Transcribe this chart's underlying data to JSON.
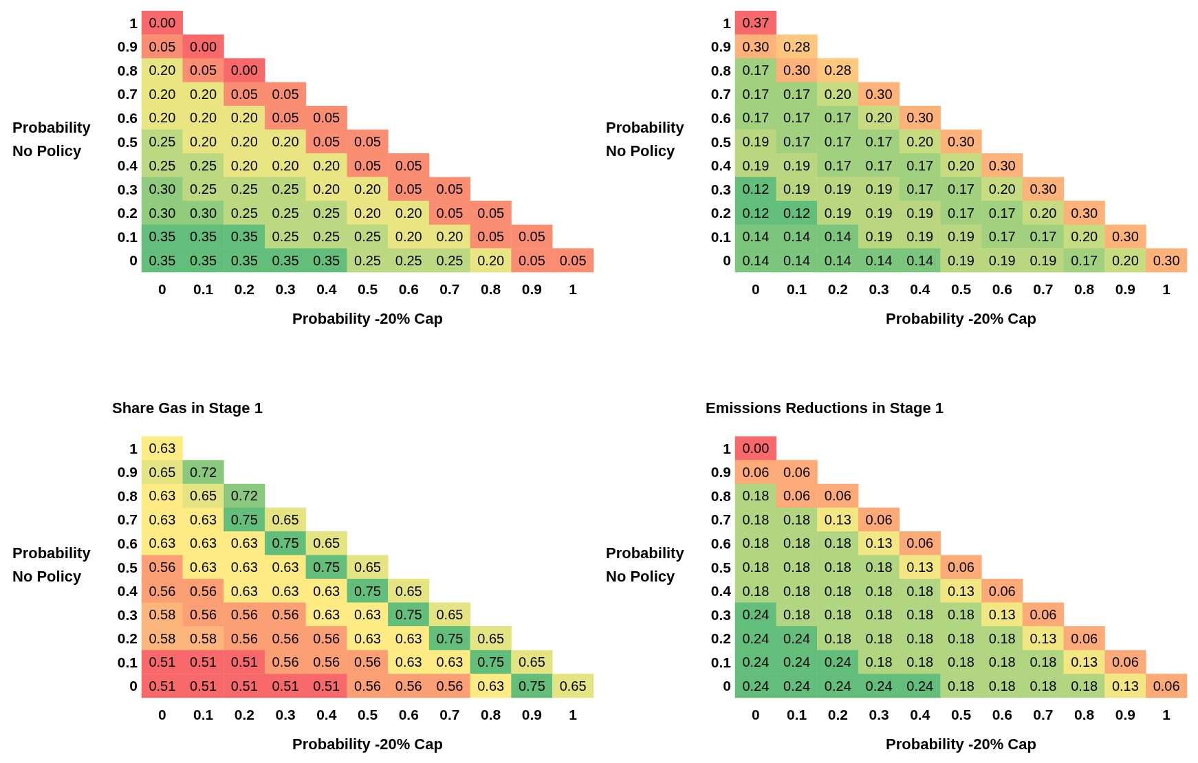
{
  "chart_data": [
    {
      "type": "heatmap",
      "xlabel": "Probability -20% Cap",
      "ylabel": "Probability No Policy",
      "colors": [
        "#f8696b",
        "#ffeb84",
        "#63be7b"
      ],
      "categories": [
        "0",
        "0.1",
        "0.2",
        "0.3",
        "0.4",
        "0.5",
        "0.6",
        "0.7",
        "0.8",
        "0.9",
        "1"
      ],
      "y_categories": [
        "1",
        "0.9",
        "0.8",
        "0.7",
        "0.6",
        "0.5",
        "0.4",
        "0.3",
        "0.2",
        "0.1",
        "0"
      ],
      "cells": [
        [
          0.0,
          null,
          null,
          null,
          null,
          null,
          null,
          null,
          null,
          null,
          null
        ],
        [
          0.05,
          0.0,
          null,
          null,
          null,
          null,
          null,
          null,
          null,
          null,
          null
        ],
        [
          0.2,
          0.05,
          0.0,
          null,
          null,
          null,
          null,
          null,
          null,
          null,
          null
        ],
        [
          0.2,
          0.2,
          0.05,
          0.05,
          null,
          null,
          null,
          null,
          null,
          null,
          null
        ],
        [
          0.2,
          0.2,
          0.2,
          0.05,
          0.05,
          null,
          null,
          null,
          null,
          null,
          null
        ],
        [
          0.25,
          0.2,
          0.2,
          0.2,
          0.05,
          0.05,
          null,
          null,
          null,
          null,
          null
        ],
        [
          0.25,
          0.25,
          0.2,
          0.2,
          0.2,
          0.05,
          0.05,
          null,
          null,
          null,
          null
        ],
        [
          0.3,
          0.25,
          0.25,
          0.25,
          0.2,
          0.2,
          0.05,
          0.05,
          null,
          null,
          null
        ],
        [
          0.3,
          0.3,
          0.25,
          0.25,
          0.25,
          0.2,
          0.2,
          0.05,
          0.05,
          null,
          null
        ],
        [
          0.35,
          0.35,
          0.35,
          0.25,
          0.25,
          0.25,
          0.2,
          0.2,
          0.05,
          0.05,
          null
        ],
        [
          0.35,
          0.35,
          0.35,
          0.35,
          0.35,
          0.25,
          0.25,
          0.25,
          0.2,
          0.05,
          0.05
        ]
      ],
      "cell_labels": [
        [
          "0.00",
          null,
          null,
          null,
          null,
          null,
          null,
          null,
          null,
          null,
          null
        ],
        [
          "0.05",
          "0.00",
          null,
          null,
          null,
          null,
          null,
          null,
          null,
          null,
          null
        ],
        [
          "0.20",
          "0.05",
          "0.00",
          null,
          null,
          null,
          null,
          null,
          null,
          null,
          null
        ],
        [
          "0.20",
          "0.20",
          "0.05",
          "0.05",
          null,
          null,
          null,
          null,
          null,
          null,
          null
        ],
        [
          "0.20",
          "0.20",
          "0.20",
          "0.05",
          "0.05",
          null,
          null,
          null,
          null,
          null,
          null
        ],
        [
          "0.25",
          "0.20",
          "0.20",
          "0.20",
          "0.05",
          "0.05",
          null,
          null,
          null,
          null,
          null
        ],
        [
          "0.25",
          "0.25",
          "0.20",
          "0.20",
          "0.20",
          "0.05",
          "0.05",
          null,
          null,
          null,
          null
        ],
        [
          "0.30",
          "0.25",
          "0.25",
          "0.25",
          "0.20",
          "0.20",
          "0.05",
          "0.05",
          null,
          null,
          null
        ],
        [
          "0.30",
          "0.30",
          "0.25",
          "0.25",
          "0.25",
          "0.20",
          "0.20",
          "0.05",
          "0.05",
          null,
          null
        ],
        [
          "0.35",
          "0.35",
          "0.35",
          "0.25",
          "0.25",
          "0.25",
          "0.20",
          "0.20",
          "0.05",
          "0.05",
          null
        ],
        [
          "0.35",
          "0.35",
          "0.35",
          "0.35",
          "0.35",
          "0.25",
          "0.25",
          "0.25",
          "0.20",
          "0.05",
          "0.05"
        ]
      ]
    },
    {
      "type": "heatmap",
      "xlabel": "Probability -20% Cap",
      "ylabel": "Probability No Policy",
      "colors": [
        "#63be7b",
        "#ffeb84",
        "#f8696b"
      ],
      "categories": [
        "0",
        "0.1",
        "0.2",
        "0.3",
        "0.4",
        "0.5",
        "0.6",
        "0.7",
        "0.8",
        "0.9",
        "1"
      ],
      "y_categories": [
        "1",
        "0.9",
        "0.8",
        "0.7",
        "0.6",
        "0.5",
        "0.4",
        "0.3",
        "0.2",
        "0.1",
        "0"
      ],
      "cells": [
        [
          0.37,
          null,
          null,
          null,
          null,
          null,
          null,
          null,
          null,
          null,
          null
        ],
        [
          0.3,
          0.28,
          null,
          null,
          null,
          null,
          null,
          null,
          null,
          null,
          null
        ],
        [
          0.17,
          0.3,
          0.28,
          null,
          null,
          null,
          null,
          null,
          null,
          null,
          null
        ],
        [
          0.17,
          0.17,
          0.2,
          0.3,
          null,
          null,
          null,
          null,
          null,
          null,
          null
        ],
        [
          0.17,
          0.17,
          0.17,
          0.2,
          0.3,
          null,
          null,
          null,
          null,
          null,
          null
        ],
        [
          0.19,
          0.17,
          0.17,
          0.17,
          0.2,
          0.3,
          null,
          null,
          null,
          null,
          null
        ],
        [
          0.19,
          0.19,
          0.17,
          0.17,
          0.17,
          0.2,
          0.3,
          null,
          null,
          null,
          null
        ],
        [
          0.12,
          0.19,
          0.19,
          0.19,
          0.17,
          0.17,
          0.2,
          0.3,
          null,
          null,
          null
        ],
        [
          0.12,
          0.12,
          0.19,
          0.19,
          0.19,
          0.17,
          0.17,
          0.2,
          0.3,
          null,
          null
        ],
        [
          0.14,
          0.14,
          0.14,
          0.19,
          0.19,
          0.19,
          0.17,
          0.17,
          0.2,
          0.3,
          null
        ],
        [
          0.14,
          0.14,
          0.14,
          0.14,
          0.14,
          0.19,
          0.19,
          0.19,
          0.17,
          0.2,
          0.3
        ]
      ],
      "cell_labels": [
        [
          "0.37",
          null,
          null,
          null,
          null,
          null,
          null,
          null,
          null,
          null,
          null
        ],
        [
          "0.30",
          "0.28",
          null,
          null,
          null,
          null,
          null,
          null,
          null,
          null,
          null
        ],
        [
          "0.17",
          "0.30",
          "0.28",
          null,
          null,
          null,
          null,
          null,
          null,
          null,
          null
        ],
        [
          "0.17",
          "0.17",
          "0.20",
          "0.30",
          null,
          null,
          null,
          null,
          null,
          null,
          null
        ],
        [
          "0.17",
          "0.17",
          "0.17",
          "0.20",
          "0.30",
          null,
          null,
          null,
          null,
          null,
          null
        ],
        [
          "0.19",
          "0.17",
          "0.17",
          "0.17",
          "0.20",
          "0.30",
          null,
          null,
          null,
          null,
          null
        ],
        [
          "0.19",
          "0.19",
          "0.17",
          "0.17",
          "0.17",
          "0.20",
          "0.30",
          null,
          null,
          null,
          null
        ],
        [
          "0.12",
          "0.19",
          "0.19",
          "0.19",
          "0.17",
          "0.17",
          "0.20",
          "0.30",
          null,
          null,
          null
        ],
        [
          "0.12",
          "0.12",
          "0.19",
          "0.19",
          "0.19",
          "0.17",
          "0.17",
          "0.20",
          "0.30",
          null,
          null
        ],
        [
          "0.14",
          "0.14",
          "0.14",
          "0.19",
          "0.19",
          "0.19",
          "0.17",
          "0.17",
          "0.20",
          "0.30",
          null
        ],
        [
          "0.14",
          "0.14",
          "0.14",
          "0.14",
          "0.14",
          "0.19",
          "0.19",
          "0.19",
          "0.17",
          "0.20",
          "0.30"
        ]
      ]
    },
    {
      "type": "heatmap",
      "title": "Share Gas in Stage 1",
      "xlabel": "Probability -20% Cap",
      "ylabel": "Probability No Policy",
      "data_labels": true,
      "colors": [
        "#f8696b",
        "#ffeb84",
        "#63be7b"
      ],
      "categories": [
        "0",
        "0.1",
        "0.2",
        "0.3",
        "0.4",
        "0.5",
        "0.6",
        "0.7",
        "0.8",
        "0.9",
        "1"
      ],
      "y_categories": [
        "1",
        "0.9",
        "0.8",
        "0.7",
        "0.6",
        "0.5",
        "0.4",
        "0.3",
        "0.2",
        "0.1",
        "0"
      ],
      "cells": [
        [
          0.63,
          null,
          null,
          null,
          null,
          null,
          null,
          null,
          null,
          null,
          null
        ],
        [
          0.65,
          0.72,
          null,
          null,
          null,
          null,
          null,
          null,
          null,
          null,
          null
        ],
        [
          0.63,
          0.65,
          0.72,
          null,
          null,
          null,
          null,
          null,
          null,
          null,
          null
        ],
        [
          0.63,
          0.63,
          0.75,
          0.65,
          null,
          null,
          null,
          null,
          null,
          null,
          null
        ],
        [
          0.63,
          0.63,
          0.63,
          0.75,
          0.65,
          null,
          null,
          null,
          null,
          null,
          null
        ],
        [
          0.56,
          0.63,
          0.63,
          0.63,
          0.75,
          0.65,
          null,
          null,
          null,
          null,
          null
        ],
        [
          0.56,
          0.56,
          0.63,
          0.63,
          0.63,
          0.75,
          0.65,
          null,
          null,
          null,
          null
        ],
        [
          0.58,
          0.56,
          0.56,
          0.56,
          0.63,
          0.63,
          0.75,
          0.65,
          null,
          null,
          null
        ],
        [
          0.58,
          0.58,
          0.56,
          0.56,
          0.56,
          0.63,
          0.63,
          0.75,
          0.65,
          null,
          null
        ],
        [
          0.51,
          0.51,
          0.51,
          0.56,
          0.56,
          0.56,
          0.63,
          0.63,
          0.75,
          0.65,
          null
        ],
        [
          0.51,
          0.51,
          0.51,
          0.51,
          0.51,
          0.56,
          0.56,
          0.56,
          0.63,
          0.75,
          0.65
        ]
      ]
    },
    {
      "type": "heatmap",
      "title": "Emissions Reductions in Stage 1",
      "xlabel": "Probability -20% Cap",
      "ylabel": "Probability No Policy",
      "colors": [
        "#f8696b",
        "#ffeb84",
        "#63be7b"
      ],
      "categories": [
        "0",
        "0.1",
        "0.2",
        "0.3",
        "0.4",
        "0.5",
        "0.6",
        "0.7",
        "0.8",
        "0.9",
        "1"
      ],
      "y_categories": [
        "1",
        "0.9",
        "0.8",
        "0.7",
        "0.6",
        "0.5",
        "0.4",
        "0.3",
        "0.2",
        "0.1",
        "0"
      ],
      "cells": [
        [
          0.0,
          null,
          null,
          null,
          null,
          null,
          null,
          null,
          null,
          null,
          null
        ],
        [
          0.06,
          0.06,
          null,
          null,
          null,
          null,
          null,
          null,
          null,
          null,
          null
        ],
        [
          0.18,
          0.06,
          0.06,
          null,
          null,
          null,
          null,
          null,
          null,
          null,
          null
        ],
        [
          0.18,
          0.18,
          0.13,
          0.06,
          null,
          null,
          null,
          null,
          null,
          null,
          null
        ],
        [
          0.18,
          0.18,
          0.18,
          0.13,
          0.06,
          null,
          null,
          null,
          null,
          null,
          null
        ],
        [
          0.18,
          0.18,
          0.18,
          0.18,
          0.13,
          0.06,
          null,
          null,
          null,
          null,
          null
        ],
        [
          0.18,
          0.18,
          0.18,
          0.18,
          0.18,
          0.13,
          0.06,
          null,
          null,
          null,
          null
        ],
        [
          0.24,
          0.18,
          0.18,
          0.18,
          0.18,
          0.18,
          0.13,
          0.06,
          null,
          null,
          null
        ],
        [
          0.24,
          0.24,
          0.18,
          0.18,
          0.18,
          0.18,
          0.18,
          0.13,
          0.06,
          null,
          null
        ],
        [
          0.24,
          0.24,
          0.24,
          0.18,
          0.18,
          0.18,
          0.18,
          0.18,
          0.13,
          0.06,
          null
        ],
        [
          0.24,
          0.24,
          0.24,
          0.24,
          0.24,
          0.18,
          0.18,
          0.18,
          0.18,
          0.13,
          0.06
        ]
      ],
      "cell_labels": [
        [
          "0.00",
          null,
          null,
          null,
          null,
          null,
          null,
          null,
          null,
          null,
          null
        ],
        [
          "0.06",
          "0.06",
          null,
          null,
          null,
          null,
          null,
          null,
          null,
          null,
          null
        ],
        [
          "0.18",
          "0.06",
          "0.06",
          null,
          null,
          null,
          null,
          null,
          null,
          null,
          null
        ],
        [
          "0.18",
          "0.18",
          "0.13",
          "0.06",
          null,
          null,
          null,
          null,
          null,
          null,
          null
        ],
        [
          "0.18",
          "0.18",
          "0.18",
          "0.13",
          "0.06",
          null,
          null,
          null,
          null,
          null,
          null
        ],
        [
          "0.18",
          "0.18",
          "0.18",
          "0.18",
          "0.13",
          "0.06",
          null,
          null,
          null,
          null,
          null
        ],
        [
          "0.18",
          "0.18",
          "0.18",
          "0.18",
          "0.18",
          "0.13",
          "0.06",
          null,
          null,
          null,
          null
        ],
        [
          "0.24",
          "0.18",
          "0.18",
          "0.18",
          "0.18",
          "0.18",
          "0.13",
          "0.06",
          null,
          null,
          null
        ],
        [
          "0.24",
          "0.24",
          "0.18",
          "0.18",
          "0.18",
          "0.18",
          "0.18",
          "0.13",
          "0.06",
          null,
          null
        ],
        [
          "0.24",
          "0.24",
          "0.24",
          "0.18",
          "0.18",
          "0.18",
          "0.18",
          "0.18",
          "0.13",
          "0.06",
          null
        ],
        [
          "0.24",
          "0.24",
          "0.24",
          "0.24",
          "0.24",
          "0.18",
          "0.18",
          "0.18",
          "0.18",
          "0.13",
          "0.06"
        ]
      ]
    }
  ]
}
